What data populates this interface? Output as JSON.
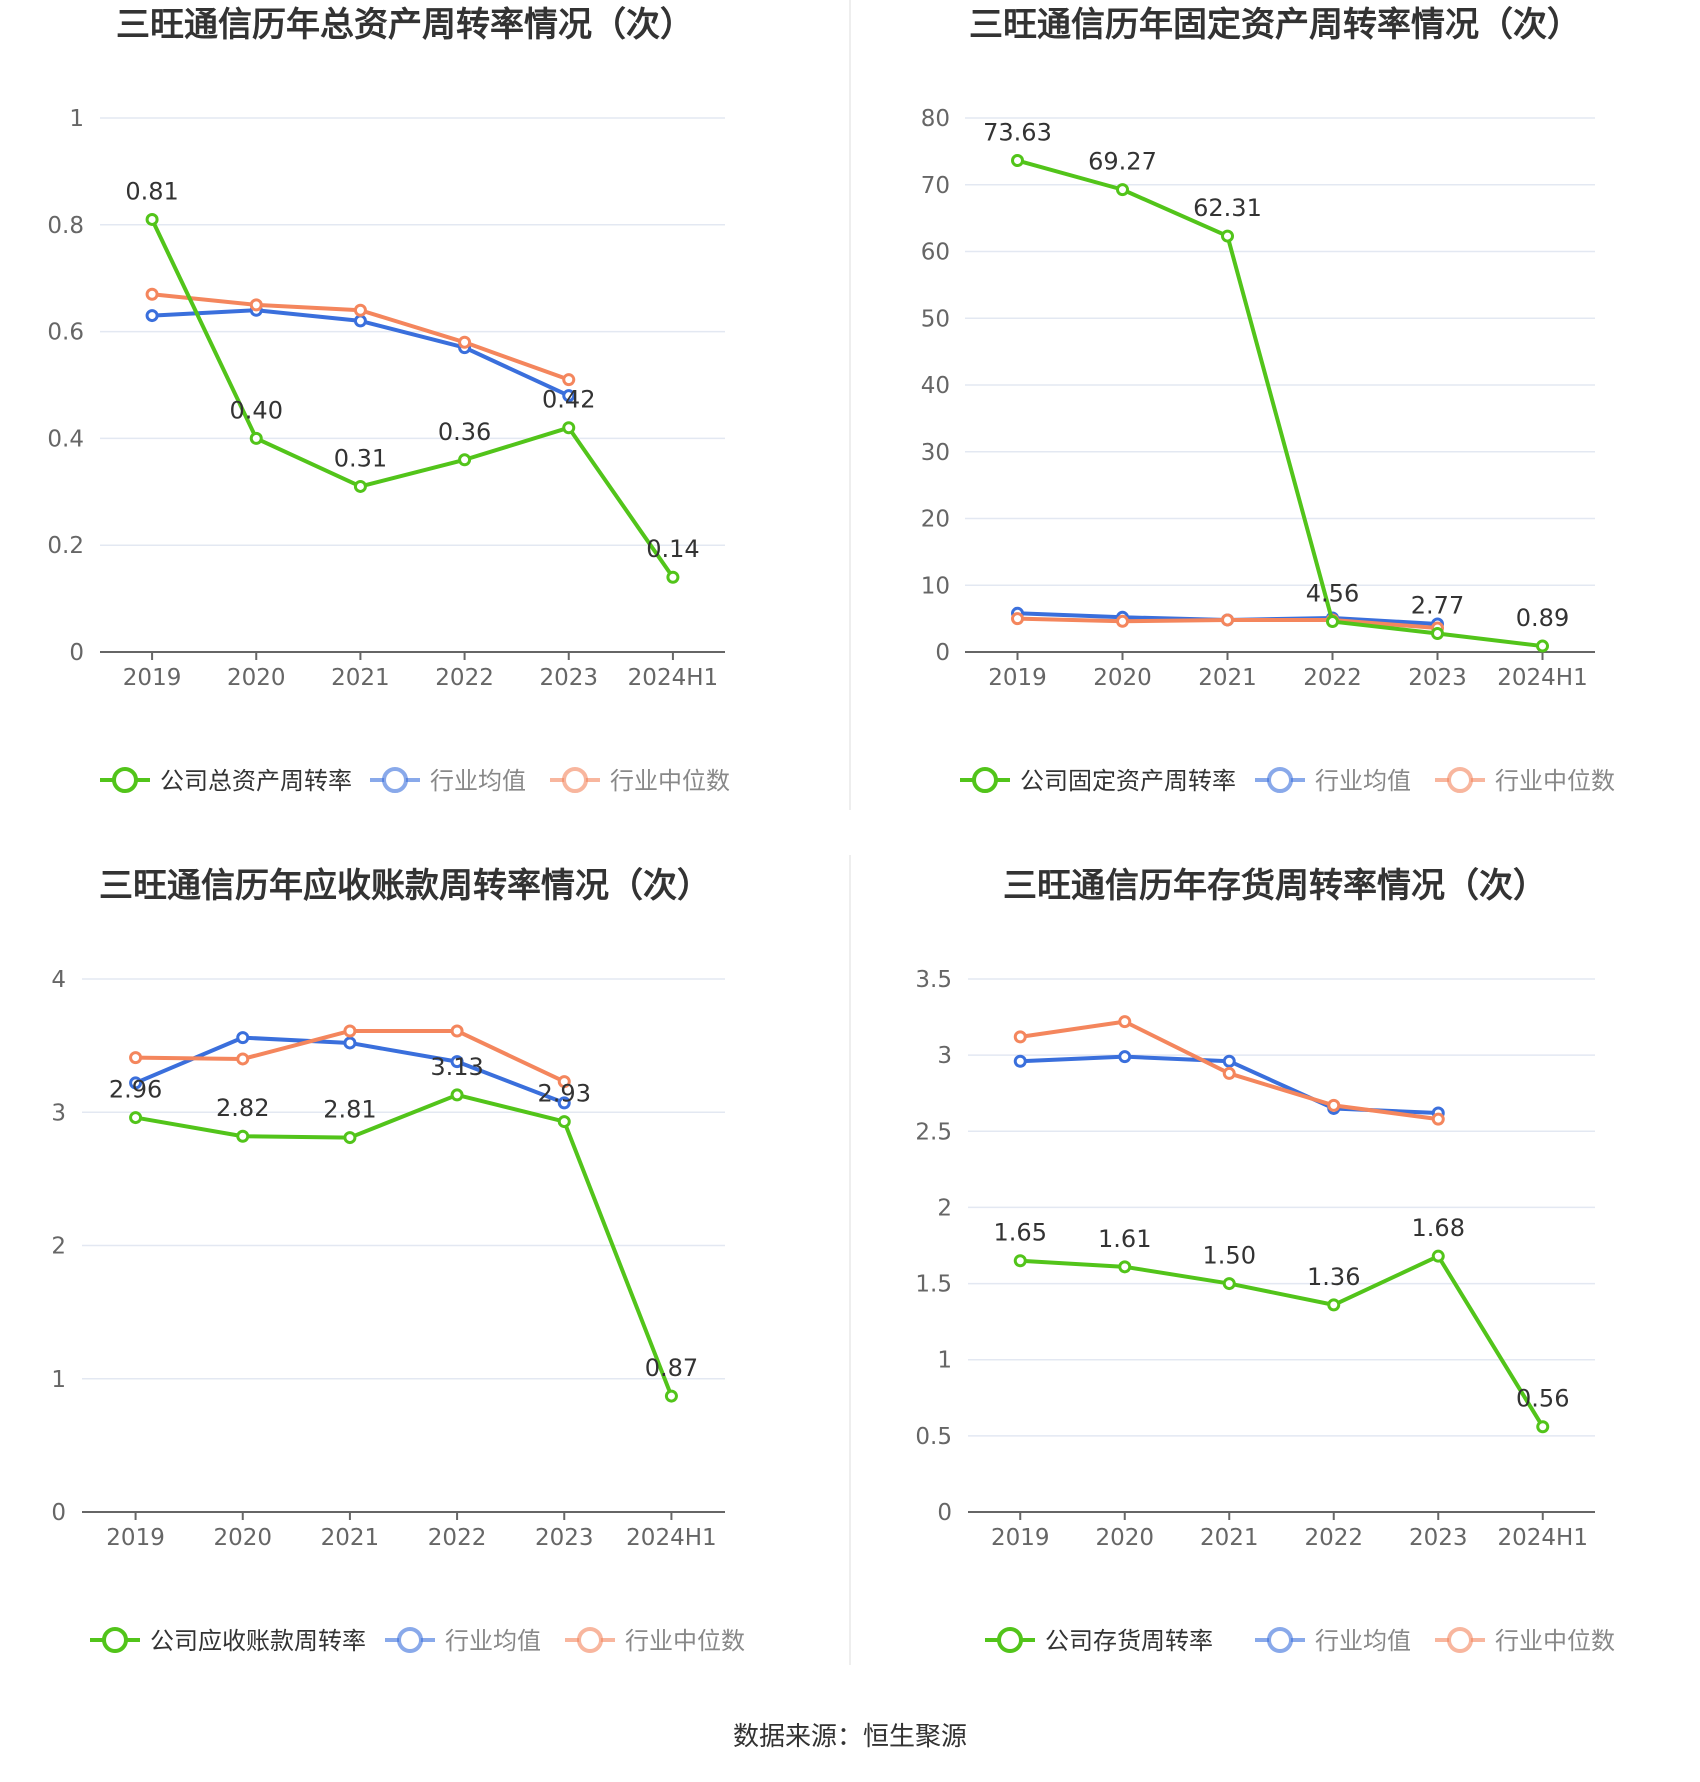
{
  "source_text": "数据来源：恒生聚源",
  "colors": {
    "company": "#52c41a",
    "avg": "#3a6fdc",
    "median": "#f4865d",
    "grid": "#e3e8f2",
    "axis": "#666666",
    "tick": "#666666",
    "title": "#333333"
  },
  "chart_data": [
    {
      "type": "line",
      "title": "三旺通信历年总资产周转率情况（次）",
      "categories": [
        "2019",
        "2020",
        "2021",
        "2022",
        "2023",
        "2024H1"
      ],
      "ylim": [
        0,
        1
      ],
      "yticks": [
        "0",
        "0.2",
        "0.4",
        "0.6",
        "0.8",
        "1"
      ],
      "ytick_values": [
        0,
        0.2,
        0.4,
        0.6,
        0.8,
        1
      ],
      "grid": true,
      "legend_position": "bottom",
      "series": [
        {
          "name": "公司总资产周转率",
          "key": "company",
          "values": [
            0.81,
            0.4,
            0.31,
            0.36,
            0.42,
            0.14
          ],
          "labels": [
            "0.81",
            "0.40",
            "0.31",
            "0.36",
            "0.42",
            "0.14"
          ]
        },
        {
          "name": "行业均值",
          "key": "avg",
          "values": [
            0.63,
            0.64,
            0.62,
            0.57,
            0.48,
            null
          ]
        },
        {
          "name": "行业中位数",
          "key": "median",
          "values": [
            0.67,
            0.65,
            0.64,
            0.58,
            0.51,
            null
          ]
        }
      ]
    },
    {
      "type": "line",
      "title": "三旺通信历年固定资产周转率情况（次）",
      "categories": [
        "2019",
        "2020",
        "2021",
        "2022",
        "2023",
        "2024H1"
      ],
      "ylim": [
        0,
        80
      ],
      "yticks": [
        "0",
        "10",
        "20",
        "30",
        "40",
        "50",
        "60",
        "70",
        "80"
      ],
      "ytick_values": [
        0,
        10,
        20,
        30,
        40,
        50,
        60,
        70,
        80
      ],
      "grid": true,
      "legend_position": "bottom",
      "series": [
        {
          "name": "公司固定资产周转率",
          "key": "company",
          "values": [
            73.63,
            69.27,
            62.31,
            4.56,
            2.77,
            0.89
          ],
          "labels": [
            "73.63",
            "69.27",
            "62.31",
            "4.56",
            "2.77",
            "0.89"
          ]
        },
        {
          "name": "行业均值",
          "key": "avg",
          "values": [
            5.8,
            5.2,
            4.8,
            5.1,
            4.2,
            null
          ]
        },
        {
          "name": "行业中位数",
          "key": "median",
          "values": [
            5.0,
            4.6,
            4.8,
            4.8,
            3.6,
            null
          ]
        }
      ]
    },
    {
      "type": "line",
      "title": "三旺通信历年应收账款周转率情况（次）",
      "categories": [
        "2019",
        "2020",
        "2021",
        "2022",
        "2023",
        "2024H1"
      ],
      "ylim": [
        0,
        4
      ],
      "yticks": [
        "0",
        "1",
        "2",
        "3",
        "4"
      ],
      "ytick_values": [
        0,
        1,
        2,
        3,
        4
      ],
      "grid": true,
      "legend_position": "bottom",
      "series": [
        {
          "name": "公司应收账款周转率",
          "key": "company",
          "values": [
            2.96,
            2.82,
            2.81,
            3.13,
            2.93,
            0.87
          ],
          "labels": [
            "2.96",
            "2.82",
            "2.81",
            "3.13",
            "2.93",
            "0.87"
          ]
        },
        {
          "name": "行业均值",
          "key": "avg",
          "values": [
            3.22,
            3.56,
            3.52,
            3.38,
            3.07,
            null
          ]
        },
        {
          "name": "行业中位数",
          "key": "median",
          "values": [
            3.41,
            3.4,
            3.61,
            3.61,
            3.23,
            null
          ]
        }
      ]
    },
    {
      "type": "line",
      "title": "三旺通信历年存货周转率情况（次）",
      "categories": [
        "2019",
        "2020",
        "2021",
        "2022",
        "2023",
        "2024H1"
      ],
      "ylim": [
        0,
        3.5
      ],
      "yticks": [
        "0",
        "0.5",
        "1",
        "1.5",
        "2",
        "2.5",
        "3",
        "3.5"
      ],
      "ytick_values": [
        0,
        0.5,
        1,
        1.5,
        2,
        2.5,
        3,
        3.5
      ],
      "grid": true,
      "legend_position": "bottom",
      "series": [
        {
          "name": "公司存货周转率",
          "key": "company",
          "values": [
            1.65,
            1.61,
            1.5,
            1.36,
            1.68,
            0.56
          ],
          "labels": [
            "1.65",
            "1.61",
            "1.50",
            "1.36",
            "1.68",
            "0.56"
          ]
        },
        {
          "name": "行业均值",
          "key": "avg",
          "values": [
            2.96,
            2.99,
            2.96,
            2.65,
            2.62,
            null
          ]
        },
        {
          "name": "行业中位数",
          "key": "median",
          "values": [
            3.12,
            3.22,
            2.88,
            2.67,
            2.58,
            null
          ]
        }
      ]
    }
  ]
}
